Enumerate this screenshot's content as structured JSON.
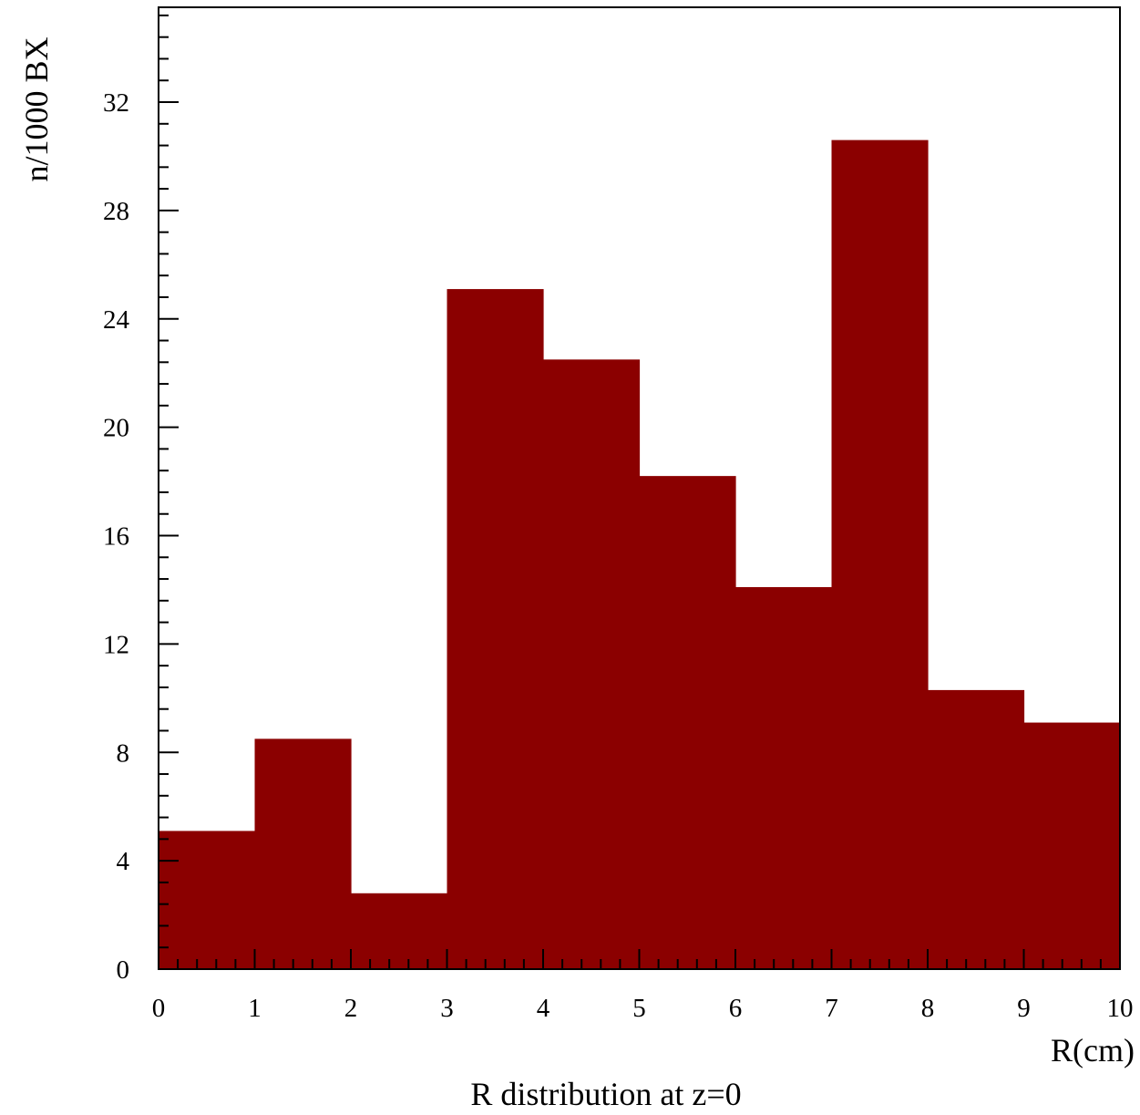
{
  "chart_data": {
    "type": "bar",
    "subtype": "histogram",
    "title": "R distribution at z=0",
    "xlabel": "R(cm)",
    "ylabel": "n/1000 BX",
    "bin_edges": [
      0,
      1,
      2,
      3,
      4,
      5,
      6,
      7,
      8,
      9,
      10
    ],
    "values": [
      5.1,
      8.5,
      2.8,
      25.1,
      22.5,
      18.2,
      14.1,
      30.6,
      10.3,
      9.1
    ],
    "xlim": [
      0,
      10
    ],
    "ylim": [
      0,
      35.5
    ],
    "x_ticks": [
      0,
      1,
      2,
      3,
      4,
      5,
      6,
      7,
      8,
      9,
      10
    ],
    "y_ticks": [
      0,
      4,
      8,
      12,
      16,
      20,
      24,
      28,
      32
    ],
    "x_tick_labels": [
      "0",
      "1",
      "2",
      "3",
      "4",
      "5",
      "6",
      "7",
      "8",
      "9",
      "10"
    ],
    "y_tick_labels": [
      "0",
      "4",
      "8",
      "12",
      "16",
      "20",
      "24",
      "28",
      "32"
    ],
    "x_minor_step": 0.2,
    "y_minor_step": 0.8,
    "bar_color": "#8b0000",
    "grid": false,
    "legend": "none"
  }
}
